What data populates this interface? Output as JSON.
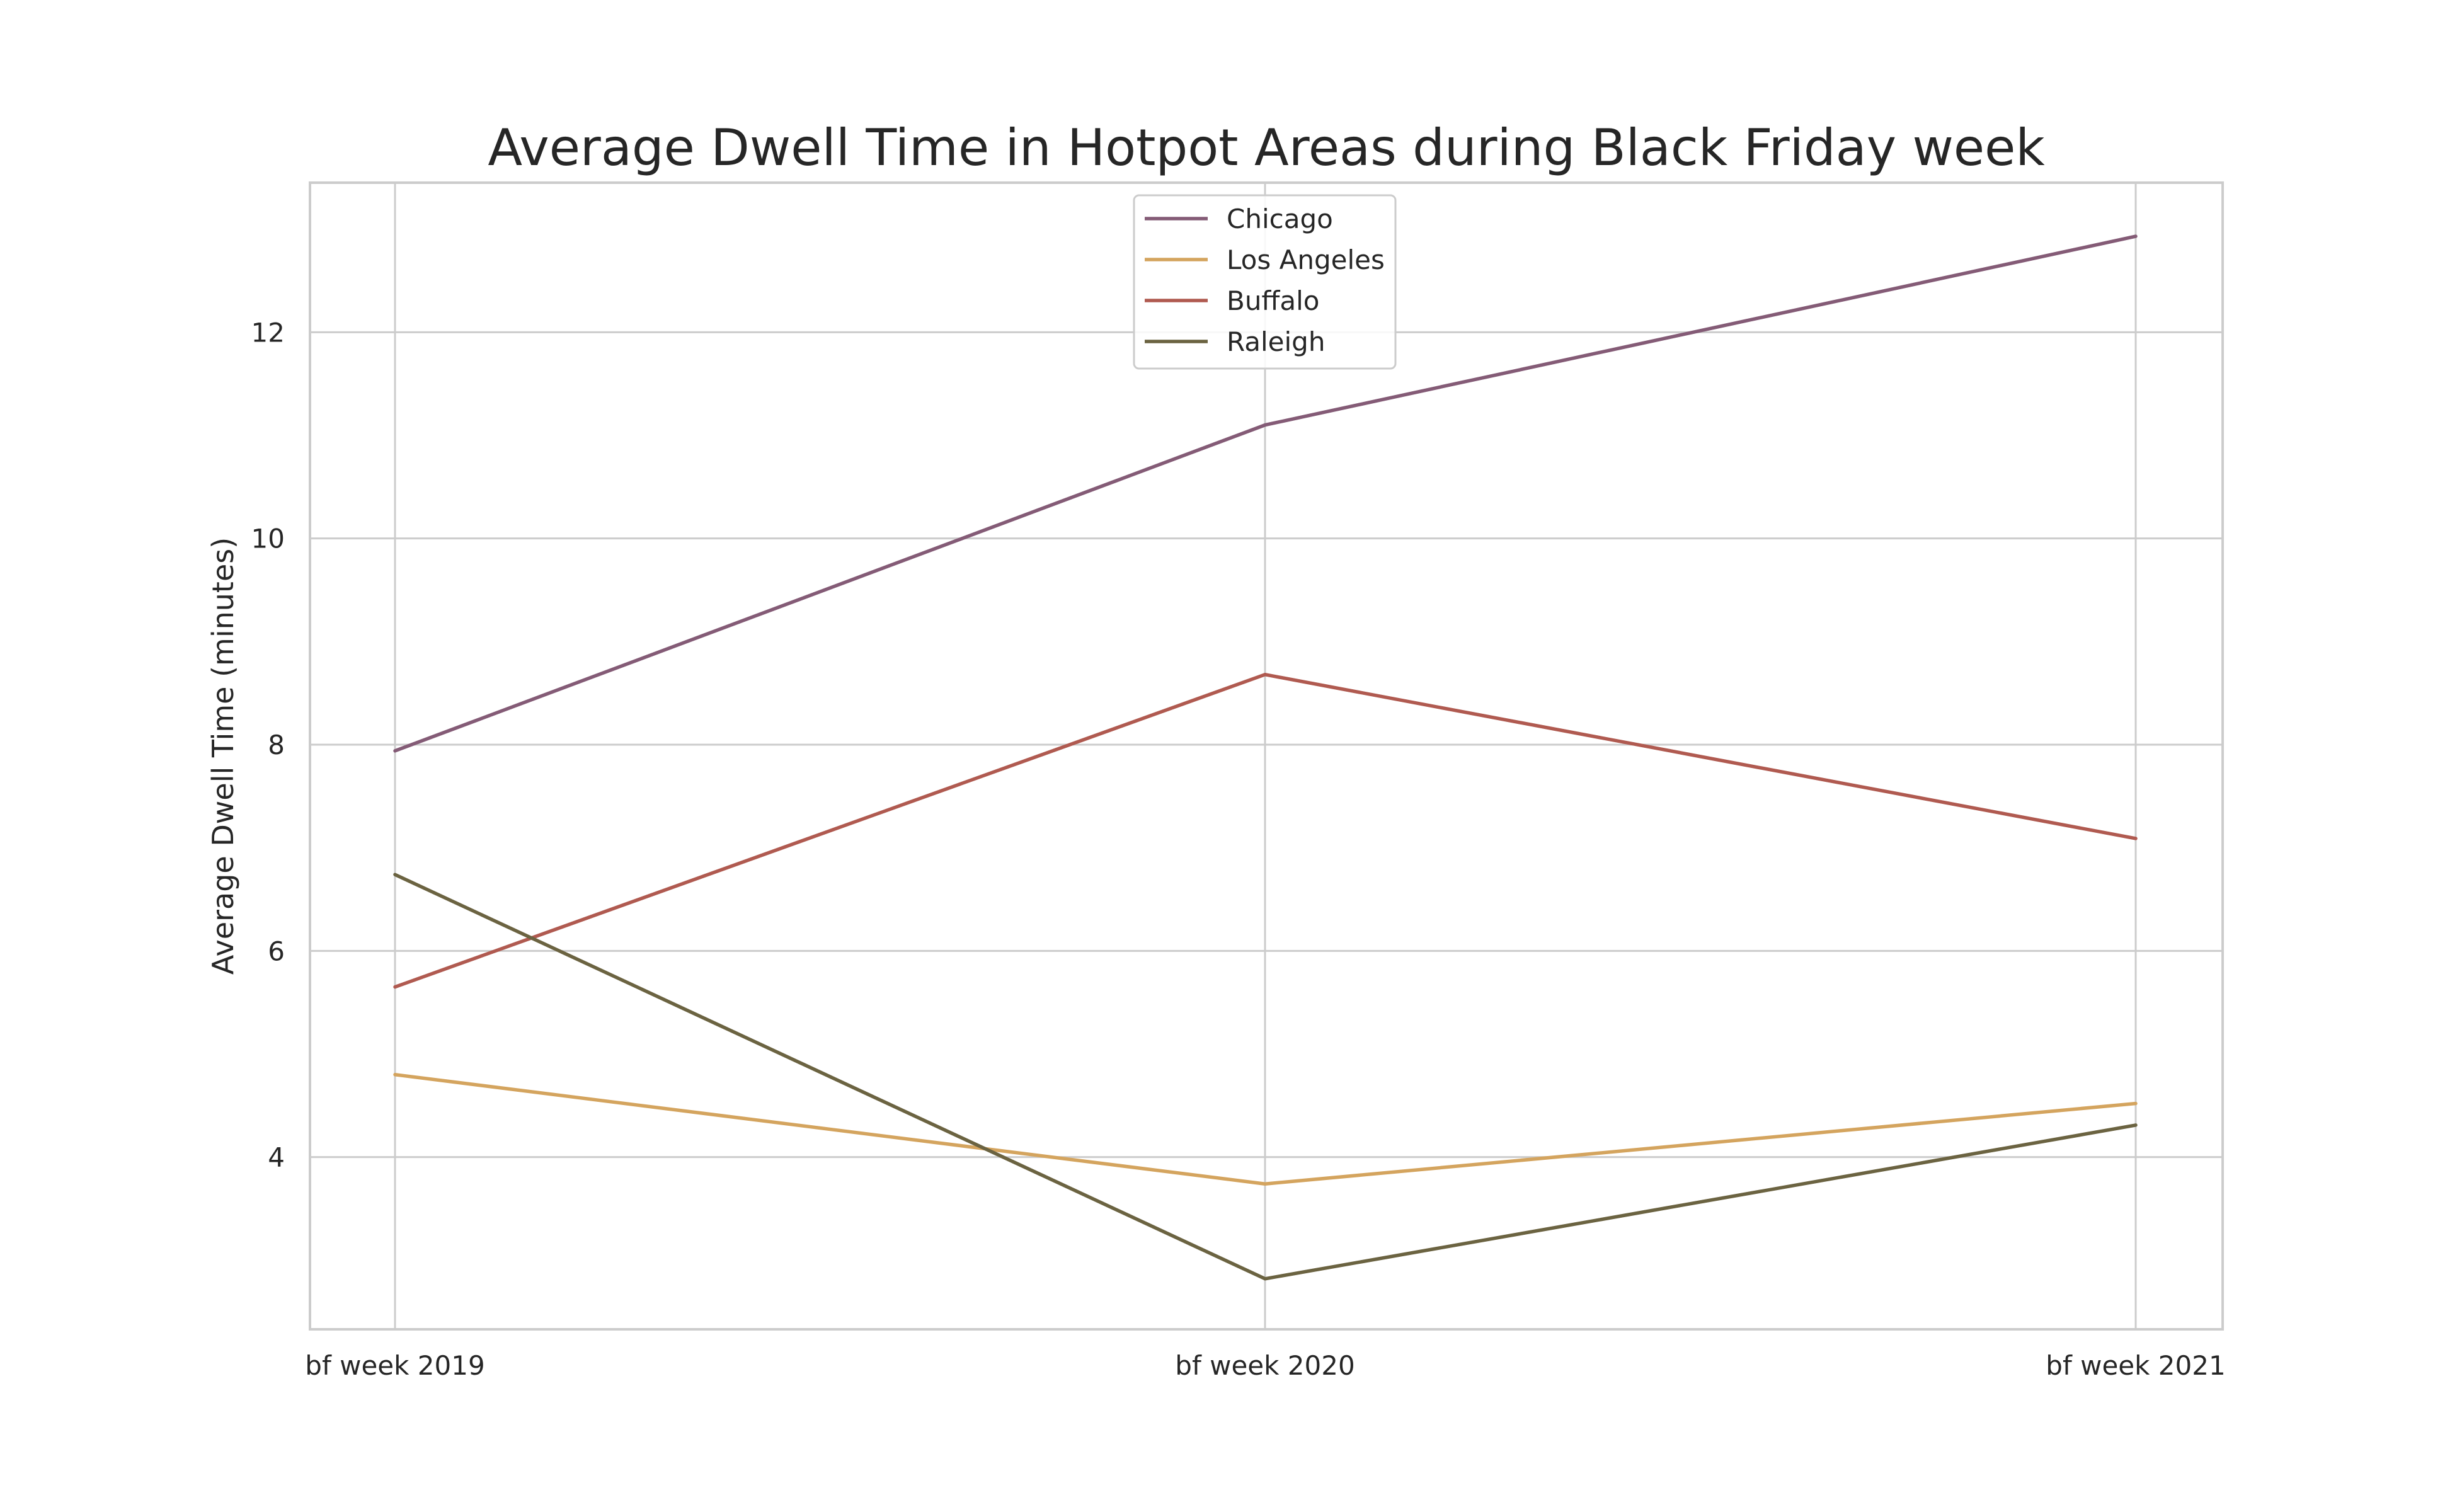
{
  "chart_data": {
    "type": "line",
    "title": "Average Dwell Time in Hotpot Areas during Black Friday week",
    "xlabel": "",
    "ylabel": "Average Dwell Time (minutes)",
    "categories": [
      "bf week 2019",
      "bf week 2020",
      "bf week 2021"
    ],
    "ylim": [
      2.33,
      13.45
    ],
    "yticks": [
      4,
      6,
      8,
      10,
      12
    ],
    "grid": true,
    "legend_position": "top-center",
    "series": [
      {
        "name": "Chicago",
        "color": "#845b76",
        "values": [
          7.94,
          11.1,
          12.93
        ]
      },
      {
        "name": "Los Angeles",
        "color": "#d4a45e",
        "values": [
          4.8,
          3.74,
          4.52
        ]
      },
      {
        "name": "Buffalo",
        "color": "#b05a50",
        "values": [
          5.65,
          8.68,
          7.09
        ]
      },
      {
        "name": "Raleigh",
        "color": "#6b6341",
        "values": [
          6.74,
          2.82,
          4.31
        ]
      }
    ]
  }
}
